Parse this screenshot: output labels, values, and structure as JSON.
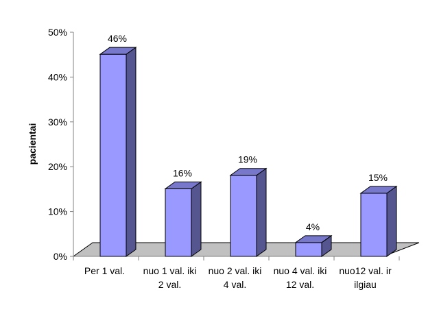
{
  "chart_data": {
    "type": "bar",
    "style": "3d-column",
    "title": "",
    "xlabel": "",
    "ylabel": "pacientai",
    "ylim": [
      0,
      50
    ],
    "y_unit": "%",
    "y_ticks": [
      "0%",
      "10%",
      "20%",
      "30%",
      "40%",
      "50%"
    ],
    "grid": false,
    "legend": "none",
    "categories": [
      [
        "Per 1 val."
      ],
      [
        "nuo 1 val. iki",
        "2 val."
      ],
      [
        "nuo 2 val. iki",
        "4 val."
      ],
      [
        "nuo 4 val. iki",
        "12 val."
      ],
      [
        "nuo12 val. ir",
        "ilgiau"
      ]
    ],
    "values": [
      46,
      16,
      19,
      4,
      15
    ],
    "data_labels": [
      "46%",
      "16%",
      "19%",
      "4%",
      "15%"
    ],
    "colors": {
      "bar_front": "#9999ff",
      "bar_side": "#555590",
      "bar_top": "#7777cc",
      "floor": "#c0c0c0",
      "axis": "#808080"
    }
  }
}
